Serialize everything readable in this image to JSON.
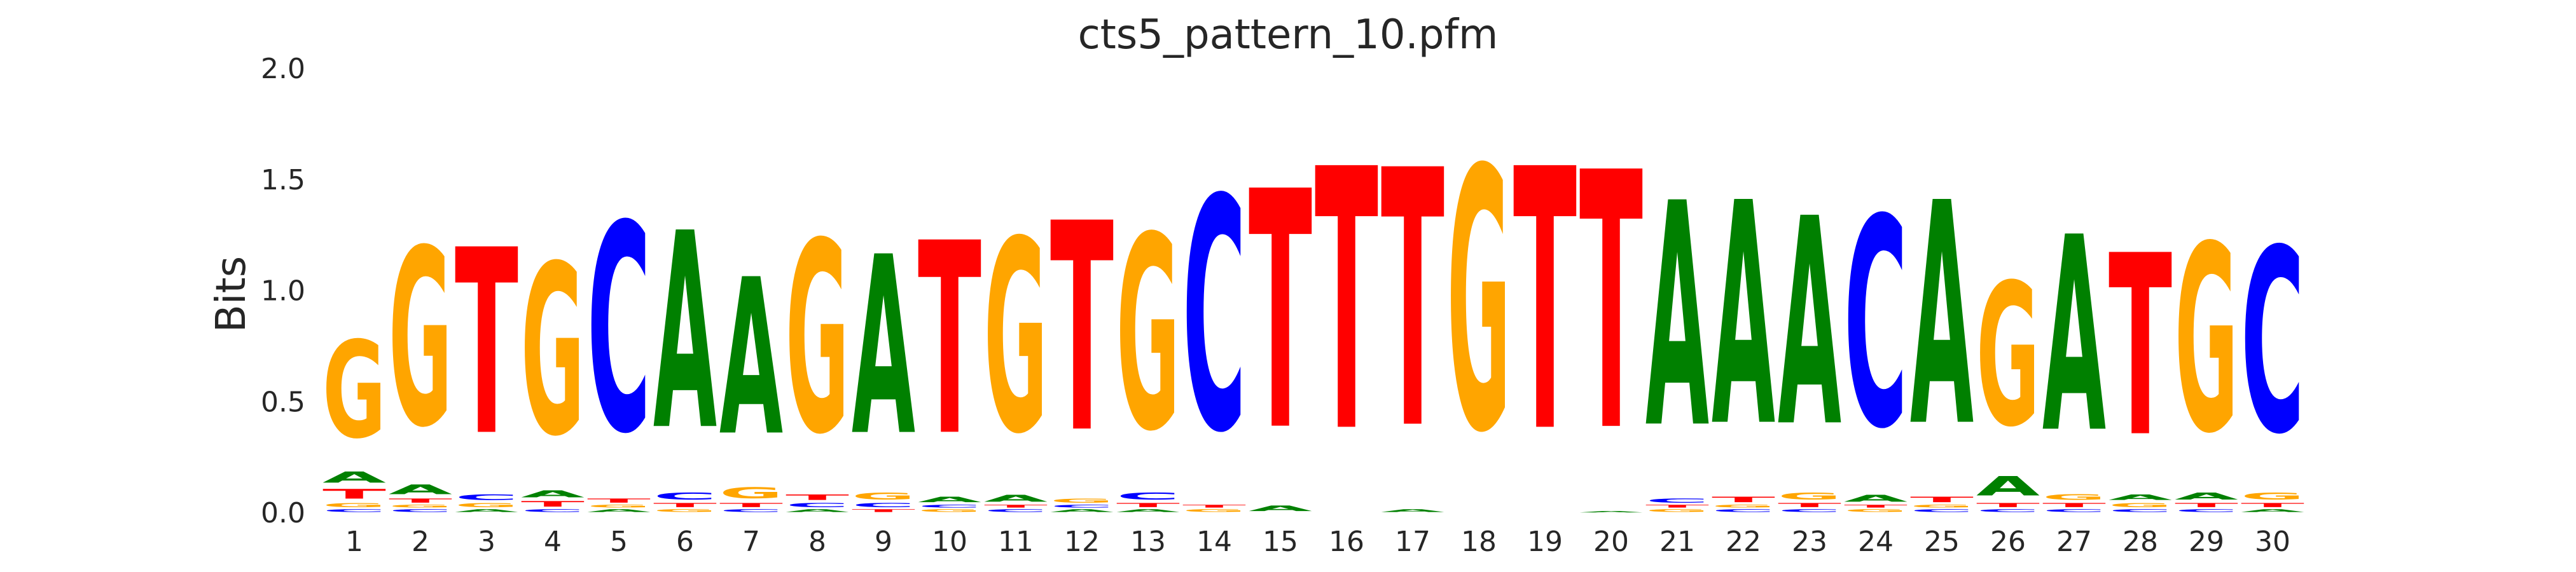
{
  "chart_data": {
    "type": "sequence-logo",
    "title": "cts5_pattern_10.pfm",
    "ylabel": "Bits",
    "ylim": [
      0,
      2.0
    ],
    "yticks": [
      "0.0",
      "0.5",
      "1.0",
      "1.5",
      "2.0"
    ],
    "colors": {
      "A": "#008000",
      "C": "#0000ff",
      "G": "#ffa500",
      "T": "#ff0000"
    },
    "positions": [
      {
        "x": "1",
        "stack": [
          [
            "C",
            0.02
          ],
          [
            "G",
            0.03
          ],
          [
            "T",
            0.07
          ],
          [
            "A",
            0.08
          ],
          [
            "G",
            0.7
          ]
        ]
      },
      {
        "x": "2",
        "stack": [
          [
            "C",
            0.02
          ],
          [
            "G",
            0.02
          ],
          [
            "T",
            0.03
          ],
          [
            "A",
            0.07
          ],
          [
            "G",
            1.28
          ]
        ]
      },
      {
        "x": "3",
        "stack": [
          [
            "A",
            0.02
          ],
          [
            "G",
            0.03
          ],
          [
            "C",
            0.04
          ],
          [
            "T",
            1.34
          ]
        ]
      },
      {
        "x": "4",
        "stack": [
          [
            "C",
            0.02
          ],
          [
            "T",
            0.04
          ],
          [
            "A",
            0.05
          ],
          [
            "G",
            1.23
          ]
        ]
      },
      {
        "x": "5",
        "stack": [
          [
            "A",
            0.02
          ],
          [
            "G",
            0.02
          ],
          [
            "T",
            0.03
          ],
          [
            "C",
            1.5
          ]
        ]
      },
      {
        "x": "6",
        "stack": [
          [
            "G",
            0.02
          ],
          [
            "T",
            0.03
          ],
          [
            "C",
            0.05
          ],
          [
            "A",
            1.42
          ]
        ]
      },
      {
        "x": "7",
        "stack": [
          [
            "C",
            0.02
          ],
          [
            "T",
            0.03
          ],
          [
            "G",
            0.08
          ],
          [
            "A",
            1.13
          ]
        ]
      },
      {
        "x": "8",
        "stack": [
          [
            "A",
            0.02
          ],
          [
            "C",
            0.03
          ],
          [
            "T",
            0.04
          ],
          [
            "G",
            1.38
          ]
        ]
      },
      {
        "x": "9",
        "stack": [
          [
            "T",
            0.02
          ],
          [
            "C",
            0.03
          ],
          [
            "G",
            0.05
          ],
          [
            "A",
            1.29
          ]
        ]
      },
      {
        "x": "10",
        "stack": [
          [
            "G",
            0.02
          ],
          [
            "C",
            0.02
          ],
          [
            "A",
            0.04
          ],
          [
            "T",
            1.39
          ]
        ]
      },
      {
        "x": "11",
        "stack": [
          [
            "C",
            0.02
          ],
          [
            "T",
            0.02
          ],
          [
            "A",
            0.05
          ],
          [
            "G",
            1.39
          ]
        ]
      },
      {
        "x": "12",
        "stack": [
          [
            "A",
            0.02
          ],
          [
            "C",
            0.02
          ],
          [
            "G",
            0.03
          ],
          [
            "T",
            1.51
          ]
        ]
      },
      {
        "x": "13",
        "stack": [
          [
            "A",
            0.02
          ],
          [
            "T",
            0.03
          ],
          [
            "C",
            0.05
          ],
          [
            "G",
            1.4
          ]
        ]
      },
      {
        "x": "14",
        "stack": [
          [
            "G",
            0.02
          ],
          [
            "T",
            0.02
          ],
          [
            "C",
            1.68
          ]
        ]
      },
      {
        "x": "15",
        "stack": [
          [
            "A",
            0.04
          ],
          [
            "T",
            1.72
          ]
        ]
      },
      {
        "x": "16",
        "stack": [
          [
            "T",
            1.89
          ]
        ]
      },
      {
        "x": "17",
        "stack": [
          [
            "A",
            0.02
          ],
          [
            "T",
            1.86
          ]
        ]
      },
      {
        "x": "18",
        "stack": [
          [
            "G",
            1.89
          ]
        ]
      },
      {
        "x": "19",
        "stack": [
          [
            "T",
            1.89
          ]
        ]
      },
      {
        "x": "20",
        "stack": [
          [
            "A",
            0.01
          ],
          [
            "T",
            1.86
          ]
        ]
      },
      {
        "x": "21",
        "stack": [
          [
            "G",
            0.02
          ],
          [
            "T",
            0.02
          ],
          [
            "C",
            0.03
          ],
          [
            "A",
            1.62
          ]
        ]
      },
      {
        "x": "22",
        "stack": [
          [
            "C",
            0.02
          ],
          [
            "G",
            0.02
          ],
          [
            "T",
            0.04
          ],
          [
            "A",
            1.61
          ]
        ]
      },
      {
        "x": "23",
        "stack": [
          [
            "C",
            0.02
          ],
          [
            "T",
            0.03
          ],
          [
            "G",
            0.05
          ],
          [
            "A",
            1.5
          ]
        ]
      },
      {
        "x": "24",
        "stack": [
          [
            "G",
            0.02
          ],
          [
            "T",
            0.02
          ],
          [
            "A",
            0.05
          ],
          [
            "C",
            1.51
          ]
        ]
      },
      {
        "x": "25",
        "stack": [
          [
            "C",
            0.02
          ],
          [
            "G",
            0.02
          ],
          [
            "T",
            0.04
          ],
          [
            "A",
            1.61
          ]
        ]
      },
      {
        "x": "26",
        "stack": [
          [
            "C",
            0.02
          ],
          [
            "T",
            0.03
          ],
          [
            "A",
            0.14
          ],
          [
            "G",
            1.03
          ]
        ]
      },
      {
        "x": "27",
        "stack": [
          [
            "C",
            0.02
          ],
          [
            "T",
            0.03
          ],
          [
            "G",
            0.04
          ],
          [
            "A",
            1.41
          ]
        ]
      },
      {
        "x": "28",
        "stack": [
          [
            "C",
            0.02
          ],
          [
            "G",
            0.03
          ],
          [
            "A",
            0.04
          ],
          [
            "T",
            1.31
          ]
        ]
      },
      {
        "x": "29",
        "stack": [
          [
            "C",
            0.02
          ],
          [
            "T",
            0.03
          ],
          [
            "A",
            0.05
          ],
          [
            "G",
            1.35
          ]
        ]
      },
      {
        "x": "30",
        "stack": [
          [
            "A",
            0.02
          ],
          [
            "T",
            0.03
          ],
          [
            "G",
            0.05
          ],
          [
            "C",
            1.33
          ]
        ]
      }
    ]
  }
}
